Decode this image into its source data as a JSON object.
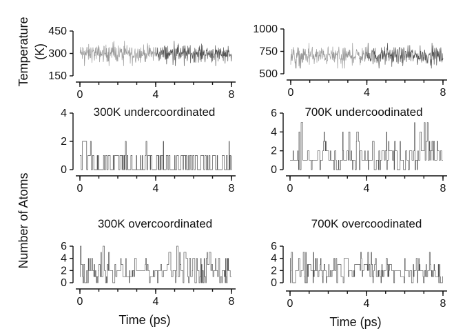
{
  "figure": {
    "ylabel_top": "Temperature",
    "ylabel_top_unit": "(K)",
    "ylabel_shared": "Number of Atoms",
    "xlabel": "Time (ps)"
  },
  "colors": {
    "trace_dark": "#555555",
    "trace_light": "#9a9a9a",
    "axis": "#111111"
  },
  "chart_data": [
    {
      "id": "p1",
      "type": "line",
      "title": "",
      "xlabel": "",
      "ylabel": "Temperature (K)",
      "xlim": [
        0,
        8
      ],
      "ylim": [
        150,
        450
      ],
      "xticks": [
        0,
        4,
        8
      ],
      "yticks": [
        150,
        300,
        450
      ],
      "series": [
        {
          "kind": "fluctuation",
          "mean": 300,
          "spread": 35,
          "min": 200,
          "max": 410,
          "x": [
            0,
            8
          ]
        }
      ]
    },
    {
      "id": "p2",
      "type": "line",
      "title": "",
      "xlabel": "",
      "ylabel": "",
      "xlim": [
        0,
        8
      ],
      "ylim": [
        500,
        1000
      ],
      "xticks": [
        0,
        4,
        8
      ],
      "yticks": [
        500,
        750,
        1000
      ],
      "series": [
        {
          "kind": "fluctuation",
          "mean": 700,
          "spread": 60,
          "min": 560,
          "max": 990,
          "x": [
            0,
            8
          ]
        }
      ]
    },
    {
      "id": "p3",
      "type": "line",
      "title": "300K undercoordinated",
      "xlabel": "",
      "ylabel": "Number of Atoms",
      "xlim": [
        0,
        8
      ],
      "ylim": [
        0,
        4
      ],
      "xticks": [
        0,
        4,
        8
      ],
      "yticks": [
        0,
        2,
        4
      ],
      "series": [
        {
          "kind": "step-count",
          "levels": [
            0,
            1,
            2
          ],
          "probabilities": [
            0.55,
            0.42,
            0.03
          ],
          "max": 2,
          "x": [
            0,
            8
          ]
        }
      ]
    },
    {
      "id": "p4",
      "type": "line",
      "title": "700K undercoodinated",
      "xlabel": "",
      "ylabel": "",
      "xlim": [
        0,
        8
      ],
      "ylim": [
        0,
        6
      ],
      "xticks": [
        0,
        4,
        8
      ],
      "yticks": [
        0,
        2,
        4,
        6
      ],
      "series": [
        {
          "kind": "step-count",
          "levels": [
            0,
            1,
            2,
            3,
            4,
            5
          ],
          "probabilities": [
            0.22,
            0.38,
            0.25,
            0.09,
            0.05,
            0.01
          ],
          "max": 5,
          "x": [
            0,
            8
          ]
        }
      ]
    },
    {
      "id": "p5",
      "type": "line",
      "title": "300K overcoordinated",
      "xlabel": "Time (ps)",
      "ylabel": "",
      "xlim": [
        0,
        8
      ],
      "ylim": [
        0,
        6
      ],
      "xticks": [
        0,
        4,
        8
      ],
      "yticks": [
        0,
        2,
        4,
        6
      ],
      "series": [
        {
          "kind": "step-count",
          "levels": [
            0,
            1,
            2,
            3,
            4,
            5,
            6
          ],
          "probabilities": [
            0.14,
            0.2,
            0.34,
            0.14,
            0.13,
            0.03,
            0.02
          ],
          "max": 6,
          "x": [
            0,
            8
          ]
        }
      ]
    },
    {
      "id": "p6",
      "type": "line",
      "title": "700K overcoodinated",
      "xlabel": "Time (ps)",
      "ylabel": "",
      "xlim": [
        0,
        8
      ],
      "ylim": [
        0,
        6
      ],
      "xticks": [
        0,
        4,
        8
      ],
      "yticks": [
        0,
        2,
        4,
        6
      ],
      "series": [
        {
          "kind": "step-count",
          "levels": [
            0,
            1,
            2,
            3,
            4,
            5
          ],
          "probabilities": [
            0.12,
            0.22,
            0.34,
            0.18,
            0.1,
            0.04
          ],
          "max": 5,
          "x": [
            0,
            8
          ]
        }
      ]
    }
  ]
}
